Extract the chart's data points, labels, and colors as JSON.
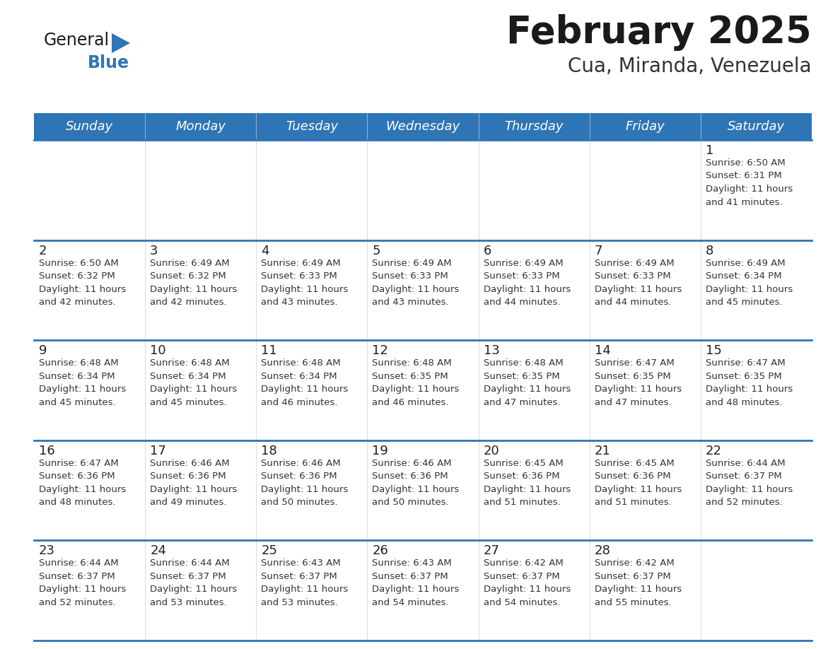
{
  "title": "February 2025",
  "subtitle": "Cua, Miranda, Venezuela",
  "header_bg": "#2E75B6",
  "header_text_color": "#FFFFFF",
  "cell_bg": "#FFFFFF",
  "row_separator_color": "#2E75B6",
  "day_names": [
    "Sunday",
    "Monday",
    "Tuesday",
    "Wednesday",
    "Thursday",
    "Friday",
    "Saturday"
  ],
  "days": [
    {
      "day": 1,
      "col": 6,
      "row": 0,
      "sunrise": "6:50 AM",
      "sunset": "6:31 PM",
      "daylight": "11 hours",
      "daylight2": "and 41 minutes."
    },
    {
      "day": 2,
      "col": 0,
      "row": 1,
      "sunrise": "6:50 AM",
      "sunset": "6:32 PM",
      "daylight": "11 hours",
      "daylight2": "and 42 minutes."
    },
    {
      "day": 3,
      "col": 1,
      "row": 1,
      "sunrise": "6:49 AM",
      "sunset": "6:32 PM",
      "daylight": "11 hours",
      "daylight2": "and 42 minutes."
    },
    {
      "day": 4,
      "col": 2,
      "row": 1,
      "sunrise": "6:49 AM",
      "sunset": "6:33 PM",
      "daylight": "11 hours",
      "daylight2": "and 43 minutes."
    },
    {
      "day": 5,
      "col": 3,
      "row": 1,
      "sunrise": "6:49 AM",
      "sunset": "6:33 PM",
      "daylight": "11 hours",
      "daylight2": "and 43 minutes."
    },
    {
      "day": 6,
      "col": 4,
      "row": 1,
      "sunrise": "6:49 AM",
      "sunset": "6:33 PM",
      "daylight": "11 hours",
      "daylight2": "and 44 minutes."
    },
    {
      "day": 7,
      "col": 5,
      "row": 1,
      "sunrise": "6:49 AM",
      "sunset": "6:33 PM",
      "daylight": "11 hours",
      "daylight2": "and 44 minutes."
    },
    {
      "day": 8,
      "col": 6,
      "row": 1,
      "sunrise": "6:49 AM",
      "sunset": "6:34 PM",
      "daylight": "11 hours",
      "daylight2": "and 45 minutes."
    },
    {
      "day": 9,
      "col": 0,
      "row": 2,
      "sunrise": "6:48 AM",
      "sunset": "6:34 PM",
      "daylight": "11 hours",
      "daylight2": "and 45 minutes."
    },
    {
      "day": 10,
      "col": 1,
      "row": 2,
      "sunrise": "6:48 AM",
      "sunset": "6:34 PM",
      "daylight": "11 hours",
      "daylight2": "and 45 minutes."
    },
    {
      "day": 11,
      "col": 2,
      "row": 2,
      "sunrise": "6:48 AM",
      "sunset": "6:34 PM",
      "daylight": "11 hours",
      "daylight2": "and 46 minutes."
    },
    {
      "day": 12,
      "col": 3,
      "row": 2,
      "sunrise": "6:48 AM",
      "sunset": "6:35 PM",
      "daylight": "11 hours",
      "daylight2": "and 46 minutes."
    },
    {
      "day": 13,
      "col": 4,
      "row": 2,
      "sunrise": "6:48 AM",
      "sunset": "6:35 PM",
      "daylight": "11 hours",
      "daylight2": "and 47 minutes."
    },
    {
      "day": 14,
      "col": 5,
      "row": 2,
      "sunrise": "6:47 AM",
      "sunset": "6:35 PM",
      "daylight": "11 hours",
      "daylight2": "and 47 minutes."
    },
    {
      "day": 15,
      "col": 6,
      "row": 2,
      "sunrise": "6:47 AM",
      "sunset": "6:35 PM",
      "daylight": "11 hours",
      "daylight2": "and 48 minutes."
    },
    {
      "day": 16,
      "col": 0,
      "row": 3,
      "sunrise": "6:47 AM",
      "sunset": "6:36 PM",
      "daylight": "11 hours",
      "daylight2": "and 48 minutes."
    },
    {
      "day": 17,
      "col": 1,
      "row": 3,
      "sunrise": "6:46 AM",
      "sunset": "6:36 PM",
      "daylight": "11 hours",
      "daylight2": "and 49 minutes."
    },
    {
      "day": 18,
      "col": 2,
      "row": 3,
      "sunrise": "6:46 AM",
      "sunset": "6:36 PM",
      "daylight": "11 hours",
      "daylight2": "and 50 minutes."
    },
    {
      "day": 19,
      "col": 3,
      "row": 3,
      "sunrise": "6:46 AM",
      "sunset": "6:36 PM",
      "daylight": "11 hours",
      "daylight2": "and 50 minutes."
    },
    {
      "day": 20,
      "col": 4,
      "row": 3,
      "sunrise": "6:45 AM",
      "sunset": "6:36 PM",
      "daylight": "11 hours",
      "daylight2": "and 51 minutes."
    },
    {
      "day": 21,
      "col": 5,
      "row": 3,
      "sunrise": "6:45 AM",
      "sunset": "6:36 PM",
      "daylight": "11 hours",
      "daylight2": "and 51 minutes."
    },
    {
      "day": 22,
      "col": 6,
      "row": 3,
      "sunrise": "6:44 AM",
      "sunset": "6:37 PM",
      "daylight": "11 hours",
      "daylight2": "and 52 minutes."
    },
    {
      "day": 23,
      "col": 0,
      "row": 4,
      "sunrise": "6:44 AM",
      "sunset": "6:37 PM",
      "daylight": "11 hours",
      "daylight2": "and 52 minutes."
    },
    {
      "day": 24,
      "col": 1,
      "row": 4,
      "sunrise": "6:44 AM",
      "sunset": "6:37 PM",
      "daylight": "11 hours",
      "daylight2": "and 53 minutes."
    },
    {
      "day": 25,
      "col": 2,
      "row": 4,
      "sunrise": "6:43 AM",
      "sunset": "6:37 PM",
      "daylight": "11 hours",
      "daylight2": "and 53 minutes."
    },
    {
      "day": 26,
      "col": 3,
      "row": 4,
      "sunrise": "6:43 AM",
      "sunset": "6:37 PM",
      "daylight": "11 hours",
      "daylight2": "and 54 minutes."
    },
    {
      "day": 27,
      "col": 4,
      "row": 4,
      "sunrise": "6:42 AM",
      "sunset": "6:37 PM",
      "daylight": "11 hours",
      "daylight2": "and 54 minutes."
    },
    {
      "day": 28,
      "col": 5,
      "row": 4,
      "sunrise": "6:42 AM",
      "sunset": "6:37 PM",
      "daylight": "11 hours",
      "daylight2": "and 55 minutes."
    }
  ],
  "num_rows": 5,
  "title_fontsize": 38,
  "subtitle_fontsize": 20,
  "header_fontsize": 13,
  "day_num_fontsize": 13,
  "info_fontsize": 9.5
}
